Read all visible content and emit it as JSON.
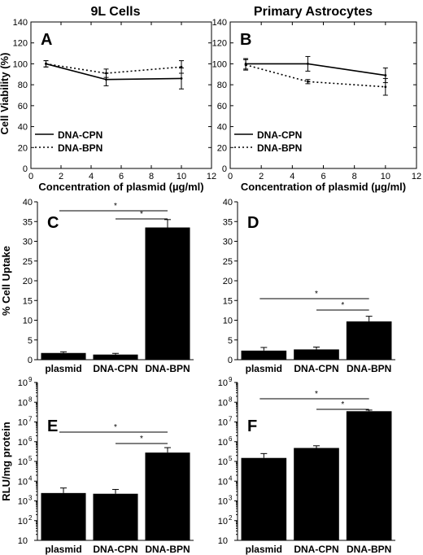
{
  "figure": {
    "column_titles": [
      "9L Cells",
      "Primary Astrocytes"
    ],
    "row_ylabels": [
      "Cell Viability (%)",
      "% Cell Uptake",
      "RLU/mg protein"
    ],
    "xlabel_line": "Concentration of plasmid (µg/ml)"
  },
  "chart_data": [
    {
      "panel": "A",
      "type": "line",
      "column": "9L Cells",
      "xlabel": "Concentration of plasmid (µg/ml)",
      "ylabel": "Cell Viability (%)",
      "xlim": [
        0,
        12
      ],
      "ylim": [
        0,
        140
      ],
      "xticks": [
        0,
        2,
        4,
        6,
        8,
        10,
        12
      ],
      "yticks": [
        0,
        20,
        40,
        60,
        80,
        100,
        120,
        140
      ],
      "legend_position": "lower-left",
      "series": [
        {
          "name": "DNA-CPN",
          "style": "solid",
          "x": [
            1,
            5,
            10
          ],
          "y": [
            100,
            85,
            86
          ],
          "err": [
            3,
            6,
            10
          ]
        },
        {
          "name": "DNA-BPN",
          "style": "dotted",
          "x": [
            1,
            5,
            10
          ],
          "y": [
            100,
            91,
            97
          ],
          "err": [
            3,
            4,
            6
          ]
        }
      ]
    },
    {
      "panel": "B",
      "type": "line",
      "column": "Primary Astrocytes",
      "xlabel": "Concentration of plasmid (µg/ml)",
      "ylabel": "",
      "xlim": [
        0,
        12
      ],
      "ylim": [
        0,
        140
      ],
      "xticks": [
        0,
        2,
        4,
        6,
        8,
        10,
        12
      ],
      "yticks": [
        0,
        20,
        40,
        60,
        80,
        100,
        120,
        140
      ],
      "legend_position": "lower-left",
      "series": [
        {
          "name": "DNA-CPN",
          "style": "solid",
          "x": [
            1,
            5,
            10
          ],
          "y": [
            100,
            100,
            89
          ],
          "err": [
            5,
            7,
            7
          ]
        },
        {
          "name": "DNA-BPN",
          "style": "dotted",
          "x": [
            1,
            5,
            10
          ],
          "y": [
            99,
            83,
            78
          ],
          "err": [
            5,
            2,
            8
          ]
        }
      ]
    },
    {
      "panel": "C",
      "type": "bar",
      "ylabel": "% Cell Uptake",
      "categories": [
        "plasmid",
        "DNA-CPN",
        "DNA-BPN"
      ],
      "values": [
        1.7,
        1.3,
        33.5
      ],
      "err": [
        0.3,
        0.3,
        2.0
      ],
      "ylim": [
        0,
        40
      ],
      "yticks": [
        0,
        5,
        10,
        15,
        20,
        25,
        30,
        35,
        40
      ],
      "significance": [
        {
          "from": 0,
          "to": 2,
          "label": "*"
        },
        {
          "from": 1,
          "to": 2,
          "label": "*"
        }
      ]
    },
    {
      "panel": "D",
      "type": "bar",
      "ylabel": "",
      "categories": [
        "plasmid",
        "DNA-CPN",
        "DNA-BPN"
      ],
      "values": [
        2.3,
        2.6,
        9.7
      ],
      "err": [
        0.8,
        0.6,
        1.3
      ],
      "ylim": [
        0,
        40
      ],
      "yticks": [
        0,
        5,
        10,
        15,
        20,
        25,
        30,
        35,
        40
      ],
      "significance": [
        {
          "from": 0,
          "to": 2,
          "label": "*"
        },
        {
          "from": 1,
          "to": 2,
          "label": "*"
        }
      ]
    },
    {
      "panel": "E",
      "type": "bar",
      "log_scale": true,
      "ylabel": "RLU/mg protein",
      "categories": [
        "plasmid",
        "DNA-CPN",
        "DNA-BPN"
      ],
      "values": [
        2500,
        2300,
        280000
      ],
      "err_high": [
        4500,
        3800,
        500000
      ],
      "ylim": [
        10,
        1000000000
      ],
      "ytick_exponents": [
        1,
        2,
        3,
        4,
        5,
        6,
        7,
        8,
        9
      ],
      "significance": [
        {
          "from": 0,
          "to": 2,
          "label": "*"
        },
        {
          "from": 1,
          "to": 2,
          "label": "*"
        }
      ]
    },
    {
      "panel": "F",
      "type": "bar",
      "log_scale": true,
      "ylabel": "",
      "categories": [
        "plasmid",
        "DNA-CPN",
        "DNA-BPN"
      ],
      "values": [
        150000,
        480000,
        35000000
      ],
      "err_high": [
        250000,
        620000,
        40000000
      ],
      "ylim": [
        10,
        1000000000
      ],
      "ytick_exponents": [
        1,
        2,
        3,
        4,
        5,
        6,
        7,
        8,
        9
      ],
      "significance": [
        {
          "from": 0,
          "to": 2,
          "label": "*"
        },
        {
          "from": 1,
          "to": 2,
          "label": "*"
        }
      ]
    }
  ]
}
